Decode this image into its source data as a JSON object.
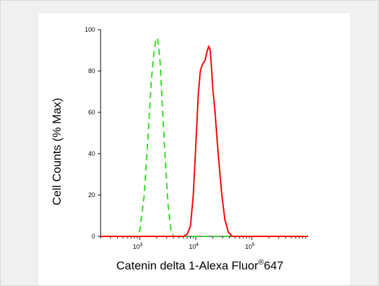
{
  "chart_data": {
    "type": "line",
    "title": "",
    "xlabel": "Catenin delta 1-Alexa Fluor",
    "xlabel_superscript": "®",
    "xlabel_suffix": "647",
    "ylabel": "Cell Counts (% Max)",
    "x_scale": "log",
    "xlim": [
      200,
      1000000
    ],
    "ylim": [
      0,
      100
    ],
    "y_ticks": [
      0,
      20,
      40,
      60,
      80,
      100
    ],
    "x_ticks": [
      {
        "value": 1000,
        "base": "10",
        "exp": "3"
      },
      {
        "value": 10000,
        "base": "10",
        "exp": "4"
      },
      {
        "value": 100000,
        "base": "10",
        "exp": "5"
      }
    ],
    "grid": false,
    "series": [
      {
        "style": "dashed",
        "color": "#33dd22",
        "x": [
          200,
          500,
          900,
          1000,
          1200,
          1400,
          1600,
          1800,
          1950,
          2100,
          2300,
          2500,
          2800,
          3200,
          3600,
          4000,
          1000000
        ],
        "y": [
          0,
          0,
          0,
          3,
          20,
          48,
          75,
          90,
          96,
          95,
          85,
          65,
          40,
          15,
          3,
          0,
          0
        ]
      },
      {
        "style": "solid",
        "color": "#ff0000",
        "x": [
          200,
          4000,
          6000,
          7000,
          8000,
          9000,
          10000,
          11000,
          12000,
          13000,
          14500,
          16000,
          17000,
          18000,
          19000,
          20000,
          22000,
          25000,
          29000,
          33000,
          38000,
          45000,
          55000,
          1000000
        ],
        "y": [
          0,
          0,
          0,
          1,
          5,
          20,
          45,
          68,
          80,
          83,
          85,
          90,
          92,
          90,
          82,
          72,
          60,
          40,
          20,
          8,
          2,
          0,
          0,
          0
        ]
      }
    ]
  }
}
